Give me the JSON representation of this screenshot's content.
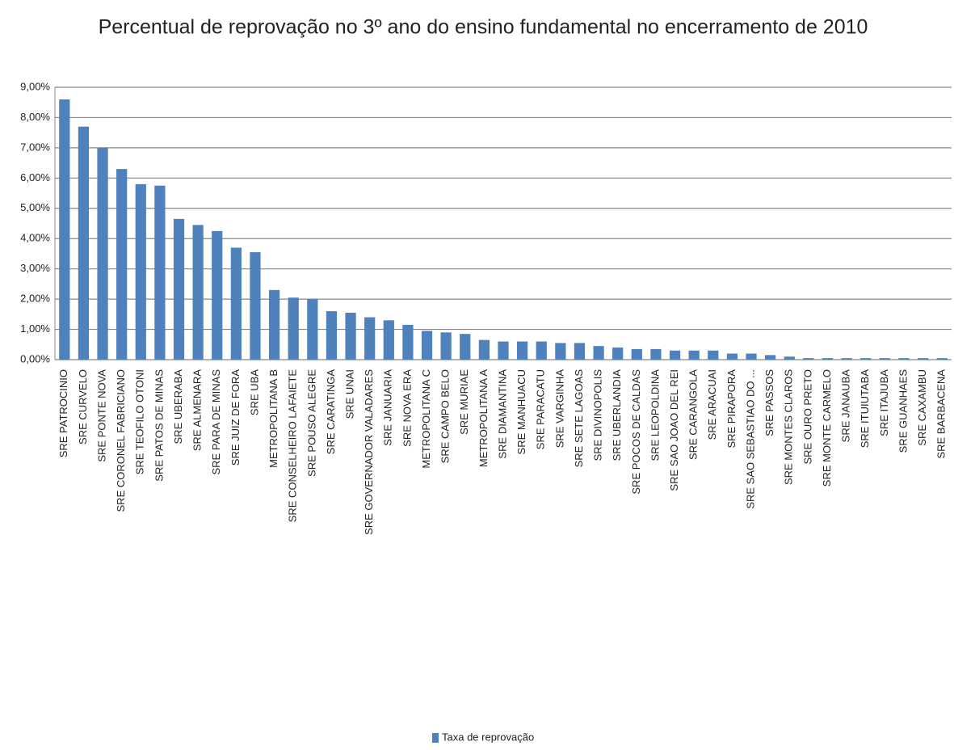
{
  "chart_data": {
    "type": "bar",
    "title": "Percentual de reprovação no 3º ano do ensino fundamental no encerramento de 2010",
    "categories": [
      "SRE PATROCINIO",
      "SRE CURVELO",
      "SRE PONTE NOVA",
      "SRE CORONEL FABRICIANO",
      "SRE TEOFILO OTONI",
      "SRE PATOS DE MINAS",
      "SRE UBERABA",
      "SRE ALMENARA",
      "SRE PARA DE MINAS",
      "SRE JUIZ DE FORA",
      "SRE UBA",
      "METROPOLITANA B",
      "SRE CONSELHEIRO LAFAIETE",
      "SRE POUSO ALEGRE",
      "SRE CARATINGA",
      "SRE UNAI",
      "SRE GOVERNADOR VALADARES",
      "SRE JANUARIA",
      "SRE NOVA ERA",
      "METROPOLITANA C",
      "SRE CAMPO BELO",
      "SRE MURIAE",
      "METROPOLITANA A",
      "SRE DIAMANTINA",
      "SRE MANHUACU",
      "SRE PARACATU",
      "SRE VARGINHA",
      "SRE SETE LAGOAS",
      "SRE DIVINOPOLIS",
      "SRE UBERLANDIA",
      "SRE POCOS DE CALDAS",
      "SRE LEOPOLDINA",
      "SRE SAO JOAO DEL REI",
      "SRE CARANGOLA",
      "SRE ARACUAI",
      "SRE PIRAPORA",
      "SRE SAO SEBASTIAO DO ...",
      "SRE PASSOS",
      "SRE MONTES CLAROS",
      "SRE OURO PRETO",
      "SRE MONTE CARMELO",
      "SRE JANAUBA",
      "SRE ITUIUTABA",
      "SRE ITAJUBA",
      "SRE GUANHAES",
      "SRE CAXAMBU",
      "SRE BARBACENA"
    ],
    "series": [
      {
        "name": "Taxa de reprovação",
        "color": "#4f81bd",
        "values": [
          8.6,
          7.7,
          7.0,
          6.3,
          5.8,
          5.75,
          4.65,
          4.45,
          4.25,
          3.7,
          3.55,
          2.3,
          2.05,
          2.0,
          1.6,
          1.55,
          1.4,
          1.3,
          1.15,
          0.95,
          0.9,
          0.85,
          0.65,
          0.6,
          0.6,
          0.6,
          0.55,
          0.55,
          0.45,
          0.4,
          0.35,
          0.35,
          0.3,
          0.3,
          0.3,
          0.2,
          0.2,
          0.15,
          0.1,
          0.05,
          0.05,
          0.05,
          0.05,
          0.05,
          0.05,
          0.05,
          0.05
        ]
      }
    ],
    "ylim": [
      0,
      9
    ],
    "yticks": [
      {
        "value": 0,
        "label": "0,00%"
      },
      {
        "value": 1,
        "label": "1,00%"
      },
      {
        "value": 2,
        "label": "2,00%"
      },
      {
        "value": 3,
        "label": "3,00%"
      },
      {
        "value": 4,
        "label": "4,00%"
      },
      {
        "value": 5,
        "label": "5,00%"
      },
      {
        "value": 6,
        "label": "6,00%"
      },
      {
        "value": 7,
        "label": "7,00%"
      },
      {
        "value": 8,
        "label": "8,00%"
      },
      {
        "value": 9,
        "label": "9,00%"
      }
    ],
    "grid": true,
    "legend": "bottom"
  }
}
